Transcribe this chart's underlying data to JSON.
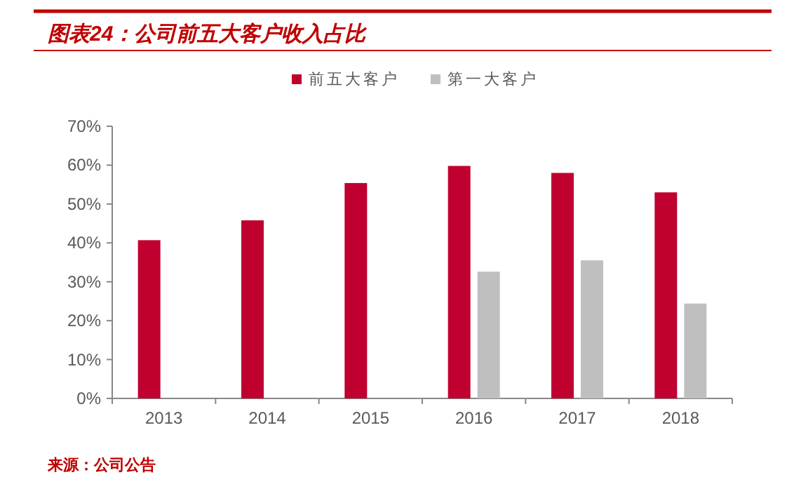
{
  "chart_data": {
    "type": "bar",
    "title": "图表24：公司前五大客户收入占比",
    "categories": [
      "2013",
      "2014",
      "2015",
      "2016",
      "2017",
      "2018"
    ],
    "series": [
      {
        "name": "前五大客户",
        "color": "#c0002f",
        "values": [
          40.7,
          45.8,
          55.4,
          59.8,
          58.0,
          53.0
        ]
      },
      {
        "name": "第一大客户",
        "color": "#bfbfbf",
        "values": [
          null,
          null,
          null,
          32.6,
          35.5,
          24.4
        ]
      }
    ],
    "ylim": [
      0,
      70
    ],
    "yticks": [
      {
        "value": 0,
        "label": "0%"
      },
      {
        "value": 10,
        "label": "10%"
      },
      {
        "value": 20,
        "label": "20%"
      },
      {
        "value": 30,
        "label": "30%"
      },
      {
        "value": 40,
        "label": "40%"
      },
      {
        "value": 50,
        "label": "50%"
      },
      {
        "value": 60,
        "label": "60%"
      },
      {
        "value": 70,
        "label": "70%"
      }
    ],
    "legend": "top",
    "grid": false,
    "annotations": [
      "来源：公司公告"
    ]
  }
}
